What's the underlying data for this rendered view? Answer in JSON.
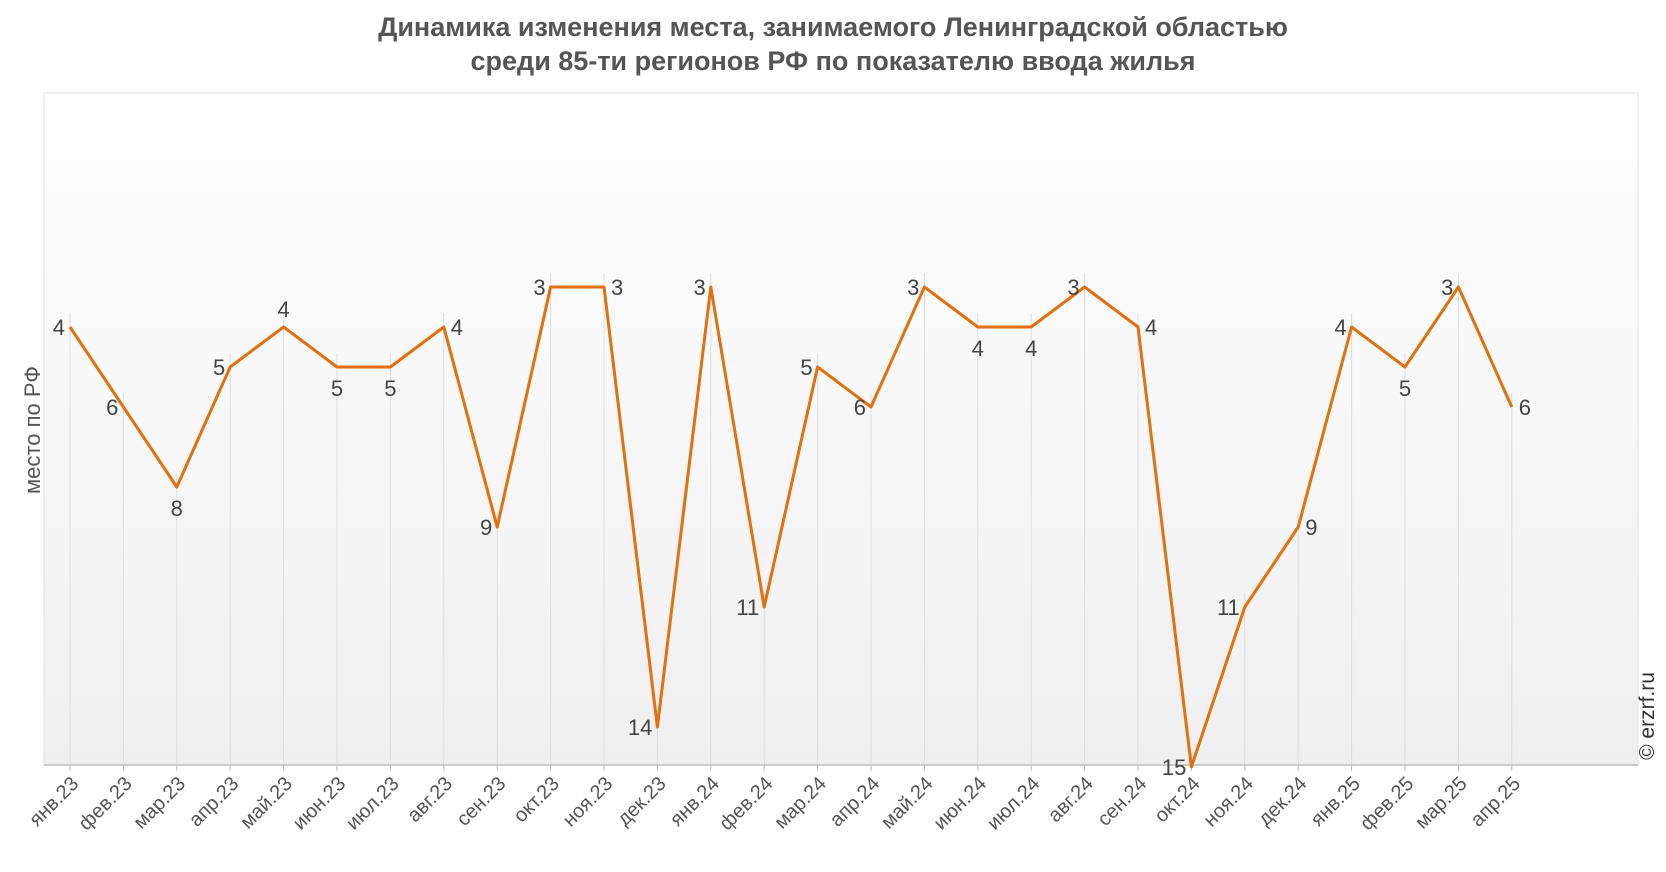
{
  "title_line1": "Динамика изменения места, занимаемого Ленинградской областью",
  "title_line2": "среди 85-ти регионов РФ по показателю ввода жилья",
  "credit": "© erzrf.ru",
  "chart_data": {
    "type": "line",
    "ylabel": "место по РФ",
    "y_inverted": true,
    "y_range": [
      1,
      16
    ],
    "grid": "vertical lines at each category",
    "categories": [
      "янв.23",
      "фев.23",
      "мар.23",
      "апр.23",
      "май.23",
      "июн.23",
      "июл.23",
      "авг.23",
      "сен.23",
      "окт.23",
      "ноя.23",
      "дек.23",
      "янв.24",
      "фев.24",
      "мар.24",
      "апр.24",
      "май.24",
      "июн.24",
      "июл.24",
      "авг.24",
      "сен.24",
      "окт.24",
      "ноя.24",
      "дек.24",
      "янв.25",
      "фев.25",
      "мар.25",
      "апр.25"
    ],
    "series": [
      {
        "color": "#e07010",
        "values": [
          4,
          6,
          8,
          5,
          4,
          5,
          5,
          4,
          9,
          3,
          3,
          14,
          3,
          11,
          5,
          6,
          3,
          4,
          4,
          3,
          4,
          15,
          11,
          9,
          4,
          5,
          3,
          6
        ]
      }
    ],
    "data_label_positions": [
      "left",
      "left",
      "below",
      "left",
      "above",
      "below",
      "below",
      "right",
      "left",
      "left",
      "right",
      "left",
      "left",
      "left",
      "left",
      "left",
      "left",
      "below",
      "below",
      "left",
      "right",
      "left",
      "left",
      "right",
      "left",
      "below",
      "left",
      "right"
    ]
  }
}
